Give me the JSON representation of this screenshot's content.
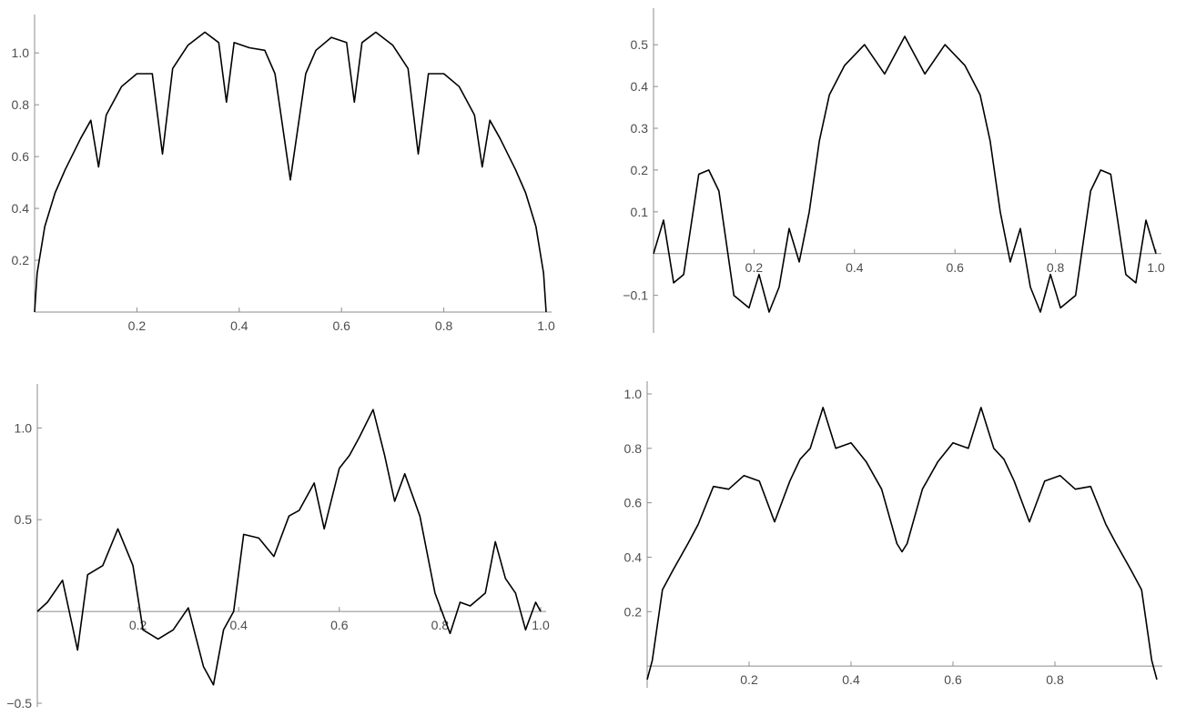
{
  "chart_data": [
    {
      "type": "line",
      "title": "",
      "xlabel": "",
      "ylabel": "",
      "grid": false,
      "xlim": [
        0,
        1
      ],
      "ylim": [
        0,
        1.12
      ],
      "x_ticks": [
        "0.2",
        "0.4",
        "0.6",
        "0.8",
        "1.0"
      ],
      "y_ticks": [
        "0.2",
        "0.4",
        "0.6",
        "0.8",
        "1.0"
      ],
      "series": [
        {
          "x": [
            0,
            0.005,
            0.02,
            0.04,
            0.06,
            0.09,
            0.11,
            0.125,
            0.14,
            0.17,
            0.2,
            0.23,
            0.25,
            0.27,
            0.3,
            0.333,
            0.36,
            0.375,
            0.39,
            0.42,
            0.45,
            0.47,
            0.5,
            0.53,
            0.55,
            0.58,
            0.61,
            0.625,
            0.64,
            0.667,
            0.7,
            0.73,
            0.75,
            0.77,
            0.8,
            0.83,
            0.86,
            0.875,
            0.89,
            0.91,
            0.94,
            0.96,
            0.98,
            0.995,
            1
          ],
          "y": [
            0,
            0.15,
            0.33,
            0.46,
            0.55,
            0.67,
            0.74,
            0.56,
            0.76,
            0.87,
            0.92,
            0.92,
            0.61,
            0.94,
            1.03,
            1.08,
            1.04,
            0.81,
            1.04,
            1.02,
            1.01,
            0.92,
            0.51,
            0.92,
            1.01,
            1.06,
            1.04,
            0.81,
            1.04,
            1.08,
            1.03,
            0.94,
            0.61,
            0.92,
            0.92,
            0.87,
            0.76,
            0.56,
            0.74,
            0.67,
            0.55,
            0.46,
            0.33,
            0.15,
            0
          ]
        }
      ]
    },
    {
      "type": "line",
      "title": "",
      "xlabel": "",
      "ylabel": "",
      "grid": false,
      "xlim": [
        0,
        1
      ],
      "ylim": [
        -0.19,
        0.57
      ],
      "x_ticks": [
        "0.2",
        "0.4",
        "0.6",
        "0.8",
        "1.0"
      ],
      "y_ticks": [
        "-0.1",
        "0.1",
        "0.2",
        "0.3",
        "0.4",
        "0.5"
      ],
      "series": [
        {
          "x": [
            0,
            0.02,
            0.04,
            0.06,
            0.09,
            0.11,
            0.13,
            0.16,
            0.19,
            0.21,
            0.23,
            0.25,
            0.27,
            0.29,
            0.31,
            0.33,
            0.35,
            0.38,
            0.42,
            0.46,
            0.5,
            0.54,
            0.58,
            0.62,
            0.65,
            0.67,
            0.69,
            0.71,
            0.73,
            0.75,
            0.77,
            0.79,
            0.81,
            0.84,
            0.87,
            0.89,
            0.91,
            0.94,
            0.96,
            0.98,
            1
          ],
          "y": [
            0,
            0.08,
            -0.07,
            -0.05,
            0.19,
            0.2,
            0.15,
            -0.1,
            -0.13,
            -0.05,
            -0.14,
            -0.08,
            0.06,
            -0.02,
            0.1,
            0.27,
            0.38,
            0.45,
            0.5,
            0.43,
            0.52,
            0.43,
            0.5,
            0.45,
            0.38,
            0.27,
            0.1,
            -0.02,
            0.06,
            -0.08,
            -0.14,
            -0.05,
            -0.13,
            -0.1,
            0.15,
            0.2,
            0.19,
            -0.05,
            -0.07,
            0.08,
            0
          ]
        }
      ]
    },
    {
      "type": "line",
      "title": "",
      "xlabel": "",
      "ylabel": "",
      "grid": false,
      "xlim": [
        0,
        1
      ],
      "ylim": [
        -0.52,
        1.2
      ],
      "x_ticks": [
        "0.2",
        "0.4",
        "0.6",
        "0.8",
        "1.0"
      ],
      "y_ticks": [
        "-0.5",
        "0.5",
        "1.0"
      ],
      "series": [
        {
          "x": [
            0,
            0.02,
            0.05,
            0.08,
            0.1,
            0.13,
            0.16,
            0.19,
            0.21,
            0.24,
            0.27,
            0.3,
            0.33,
            0.35,
            0.37,
            0.39,
            0.41,
            0.44,
            0.47,
            0.5,
            0.52,
            0.55,
            0.57,
            0.6,
            0.62,
            0.64,
            0.667,
            0.69,
            0.71,
            0.73,
            0.76,
            0.79,
            0.82,
            0.84,
            0.86,
            0.89,
            0.91,
            0.93,
            0.95,
            0.97,
            0.99,
            1
          ],
          "y": [
            0,
            0.05,
            0.17,
            -0.21,
            0.2,
            0.25,
            0.45,
            0.25,
            -0.1,
            -0.15,
            -0.1,
            0.02,
            -0.3,
            -0.4,
            -0.1,
            0.0,
            0.42,
            0.4,
            0.3,
            0.52,
            0.55,
            0.7,
            0.45,
            0.78,
            0.85,
            0.95,
            1.1,
            0.85,
            0.6,
            0.75,
            0.52,
            0.1,
            -0.12,
            0.05,
            0.03,
            0.1,
            0.38,
            0.18,
            0.1,
            -0.1,
            0.05,
            0
          ]
        }
      ]
    },
    {
      "type": "line",
      "title": "",
      "xlabel": "",
      "ylabel": "",
      "grid": false,
      "xlim": [
        0,
        1
      ],
      "ylim": [
        -0.08,
        1.02
      ],
      "x_ticks": [
        "0.2",
        "0.4",
        "0.6",
        "0.8"
      ],
      "y_ticks": [
        "0.2",
        "0.4",
        "0.6",
        "0.8",
        "1.0"
      ],
      "series": [
        {
          "x": [
            0,
            0.01,
            0.03,
            0.05,
            0.08,
            0.1,
            0.13,
            0.16,
            0.19,
            0.22,
            0.25,
            0.28,
            0.3,
            0.32,
            0.345,
            0.37,
            0.4,
            0.43,
            0.46,
            0.49,
            0.5,
            0.51,
            0.54,
            0.57,
            0.6,
            0.63,
            0.655,
            0.68,
            0.7,
            0.72,
            0.75,
            0.78,
            0.81,
            0.84,
            0.87,
            0.9,
            0.92,
            0.95,
            0.97,
            0.99,
            1
          ],
          "y": [
            -0.05,
            0.02,
            0.28,
            0.35,
            0.45,
            0.52,
            0.66,
            0.65,
            0.7,
            0.68,
            0.53,
            0.68,
            0.76,
            0.8,
            0.95,
            0.8,
            0.82,
            0.75,
            0.65,
            0.45,
            0.42,
            0.45,
            0.65,
            0.75,
            0.82,
            0.8,
            0.95,
            0.8,
            0.76,
            0.68,
            0.53,
            0.68,
            0.7,
            0.65,
            0.66,
            0.52,
            0.45,
            0.35,
            0.28,
            0.02,
            -0.05
          ]
        }
      ]
    }
  ]
}
